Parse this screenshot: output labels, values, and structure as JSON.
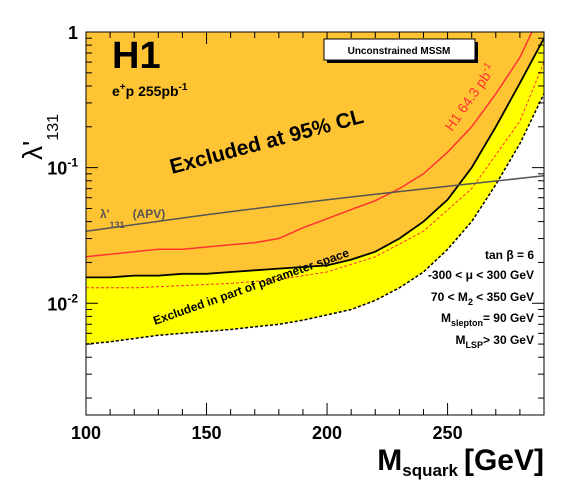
{
  "chart_data": {
    "type": "area",
    "y_scale": "log",
    "xlim": [
      100,
      290
    ],
    "ylim": [
      0.0015,
      1
    ],
    "x_ticks": [
      {
        "value": 100,
        "label": "100"
      },
      {
        "value": 150,
        "label": "150"
      },
      {
        "value": 200,
        "label": "200"
      },
      {
        "value": 250,
        "label": "250"
      }
    ],
    "y_ticks": [
      {
        "value": 1,
        "label": "1"
      },
      {
        "value": 0.1,
        "label": "10",
        "sup": "-1"
      },
      {
        "value": 0.01,
        "label": "10",
        "sup": "-2"
      }
    ],
    "x_axis_title": {
      "main": "M",
      "sub": "squark",
      "unit": "[GeV]"
    },
    "y_axis_title": {
      "main": "λ'",
      "sub": "131"
    },
    "experiment": "H1",
    "dataset": {
      "pre": "e",
      "sup1": "+",
      "mid": "p 255pb",
      "sup2": "-1"
    },
    "box_label": "Unconstrained MSSM",
    "excluded_label": "Excluded at 95% CL",
    "partial_label": "Excluded in part of parameter space",
    "prev_label": "H1 64.3 pb",
    "prev_label_sup": "-1",
    "apv_label": {
      "main": "λ'",
      "sub": "131",
      "rest": "(APV)"
    },
    "params": [
      {
        "text": "tan β = 6"
      },
      {
        "text": "-300 <  μ  < 300 GeV"
      },
      {
        "pre": "70 < M",
        "sub": "2",
        "post": " < 350 GeV"
      },
      {
        "pre": "M",
        "sub": "slepton",
        "post": "= 90 GeV"
      },
      {
        "pre": "M",
        "sub": "LSP",
        "post": "> 30 GeV"
      }
    ],
    "series": [
      {
        "role": "full-exclusion-limit",
        "color": "#000000",
        "x": [
          100,
          110,
          120,
          130,
          140,
          150,
          160,
          170,
          180,
          190,
          200,
          210,
          220,
          230,
          240,
          250,
          260,
          270,
          280,
          290
        ],
        "y": [
          0.0155,
          0.0155,
          0.016,
          0.016,
          0.0165,
          0.0165,
          0.017,
          0.0175,
          0.018,
          0.0185,
          0.019,
          0.021,
          0.024,
          0.03,
          0.04,
          0.058,
          0.1,
          0.2,
          0.42,
          0.9
        ]
      },
      {
        "role": "partial-exclusion-limit",
        "color": "#000000",
        "x": [
          100,
          110,
          120,
          130,
          140,
          150,
          160,
          170,
          180,
          190,
          200,
          210,
          220,
          230,
          240,
          250,
          260,
          270,
          280,
          290
        ],
        "y": [
          0.005,
          0.0052,
          0.0055,
          0.0058,
          0.006,
          0.0062,
          0.0064,
          0.0067,
          0.007,
          0.0075,
          0.0082,
          0.009,
          0.0105,
          0.013,
          0.017,
          0.025,
          0.04,
          0.075,
          0.15,
          0.35
        ]
      },
      {
        "role": "h1-64.3pb-limit",
        "color": "#ff3333",
        "x": [
          100,
          110,
          120,
          130,
          140,
          150,
          160,
          170,
          180,
          190,
          200,
          210,
          220,
          230,
          240,
          250,
          260,
          270,
          280,
          285
        ],
        "y": [
          0.022,
          0.023,
          0.024,
          0.025,
          0.025,
          0.026,
          0.027,
          0.028,
          0.03,
          0.036,
          0.042,
          0.049,
          0.057,
          0.07,
          0.09,
          0.13,
          0.2,
          0.35,
          0.65,
          1.0
        ]
      },
      {
        "role": "dashed-limit",
        "color": "#ff3333",
        "x": [
          100,
          120,
          140,
          160,
          180,
          200,
          220,
          240,
          260,
          280,
          290
        ],
        "y": [
          0.013,
          0.013,
          0.0135,
          0.014,
          0.015,
          0.017,
          0.022,
          0.034,
          0.07,
          0.22,
          0.6
        ]
      },
      {
        "role": "apv-limit",
        "color": "#555555",
        "x": [
          100,
          150,
          200,
          250,
          290
        ],
        "y": [
          0.034,
          0.045,
          0.058,
          0.073,
          0.087
        ]
      }
    ]
  }
}
